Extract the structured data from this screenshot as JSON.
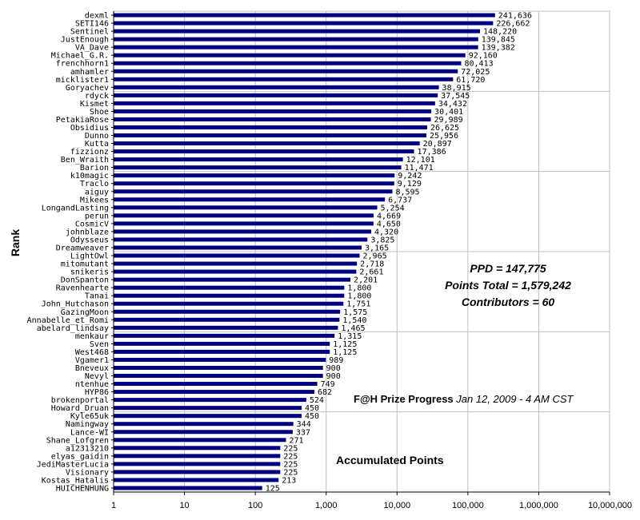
{
  "chart_data": {
    "type": "bar",
    "orientation": "horizontal",
    "x_scale": "log",
    "xlim": [
      1,
      10000000
    ],
    "x_ticks": [
      "1",
      "10",
      "100",
      "1,000",
      "10,000",
      "100,000",
      "1,000,000",
      "10,000,000"
    ],
    "ylabel": "Rank",
    "bar_color": "#000080",
    "categories": [
      "dexml",
      "SETI146",
      "Sentinel",
      "JustEnough",
      "VA_Dave",
      "Michael_G.R.",
      "frenchhorn1",
      "amhamler",
      "micklister1",
      "Goryachev",
      "rdyck",
      "Kismet",
      "Shoe",
      "PetakiaRose",
      "Obsidius",
      "Dunno",
      "Kutta",
      "fizzionz",
      "Ben_Wraith",
      "Barion",
      "k10magic",
      "Traclo",
      "aiguy",
      "Mikees",
      "LongandLasting",
      "perun",
      "CosmicV",
      "johnblaze",
      "Odysseus",
      "Dreamweaver",
      "LightOwl",
      "mitomutant",
      "snikeris",
      "DonSpanton",
      "Ravenhearte",
      "Tanai",
      "John_Hutchason",
      "GazingMoon",
      "Annabelle_et_Romi",
      "abelard_lindsay",
      "menkaur",
      "Sven",
      "West468",
      "Vgamer1",
      "Bneveux",
      "Nevyl",
      "ntenhue",
      "HYP86",
      "brokenportal",
      "Howard_Druan",
      "Kyle65uk",
      "Namingway",
      "Lance-WI",
      "Shane_Lofgren",
      "a12313210",
      "elyas_gaidin",
      "JediMasterLucia",
      "Visionary",
      "Kostas_Hatalis",
      "HUICHENHUNG"
    ],
    "values": [
      241636,
      226662,
      148220,
      139845,
      139382,
      92160,
      80413,
      72025,
      61720,
      38915,
      37545,
      34432,
      30401,
      29989,
      26625,
      25956,
      20897,
      17386,
      12101,
      11471,
      9242,
      9129,
      8595,
      6737,
      5254,
      4669,
      4650,
      4320,
      3825,
      3165,
      2965,
      2718,
      2661,
      2201,
      1800,
      1800,
      1751,
      1575,
      1540,
      1465,
      1315,
      1125,
      1125,
      989,
      900,
      900,
      749,
      682,
      524,
      450,
      450,
      344,
      337,
      271,
      225,
      225,
      225,
      225,
      213,
      125
    ],
    "value_labels": [
      "241,636",
      "226,662",
      "148,220",
      "139,845",
      "139,382",
      "92,160",
      "80,413",
      "72,025",
      "61,720",
      "38,915",
      "37,545",
      "34,432",
      "30,401",
      "29,989",
      "26,625",
      "25,956",
      "20,897",
      "17,386",
      "12,101",
      "11,471",
      "9,242",
      "9,129",
      "8,595",
      "6,737",
      "5,254",
      "4,669",
      "4,650",
      "4,320",
      "3,825",
      "3,165",
      "2,965",
      "2,718",
      "2,661",
      "2,201",
      "1,800",
      "1,800",
      "1,751",
      "1,575",
      "1,540",
      "1,465",
      "1,315",
      "1,125",
      "1,125",
      "989",
      "900",
      "900",
      "749",
      "682",
      "524",
      "450",
      "450",
      "344",
      "337",
      "271",
      "225",
      "225",
      "225",
      "225",
      "213",
      "125"
    ]
  },
  "annotations": {
    "ppd": "PPD = 147,775",
    "points_total": "Points Total = 1,579,242",
    "contributors": "Contributors = 60",
    "progress_title": "F@H Prize Progress",
    "progress_date": "Jan 12, 2009 - 4 AM CST",
    "accumulated": "Accumulated Points"
  }
}
